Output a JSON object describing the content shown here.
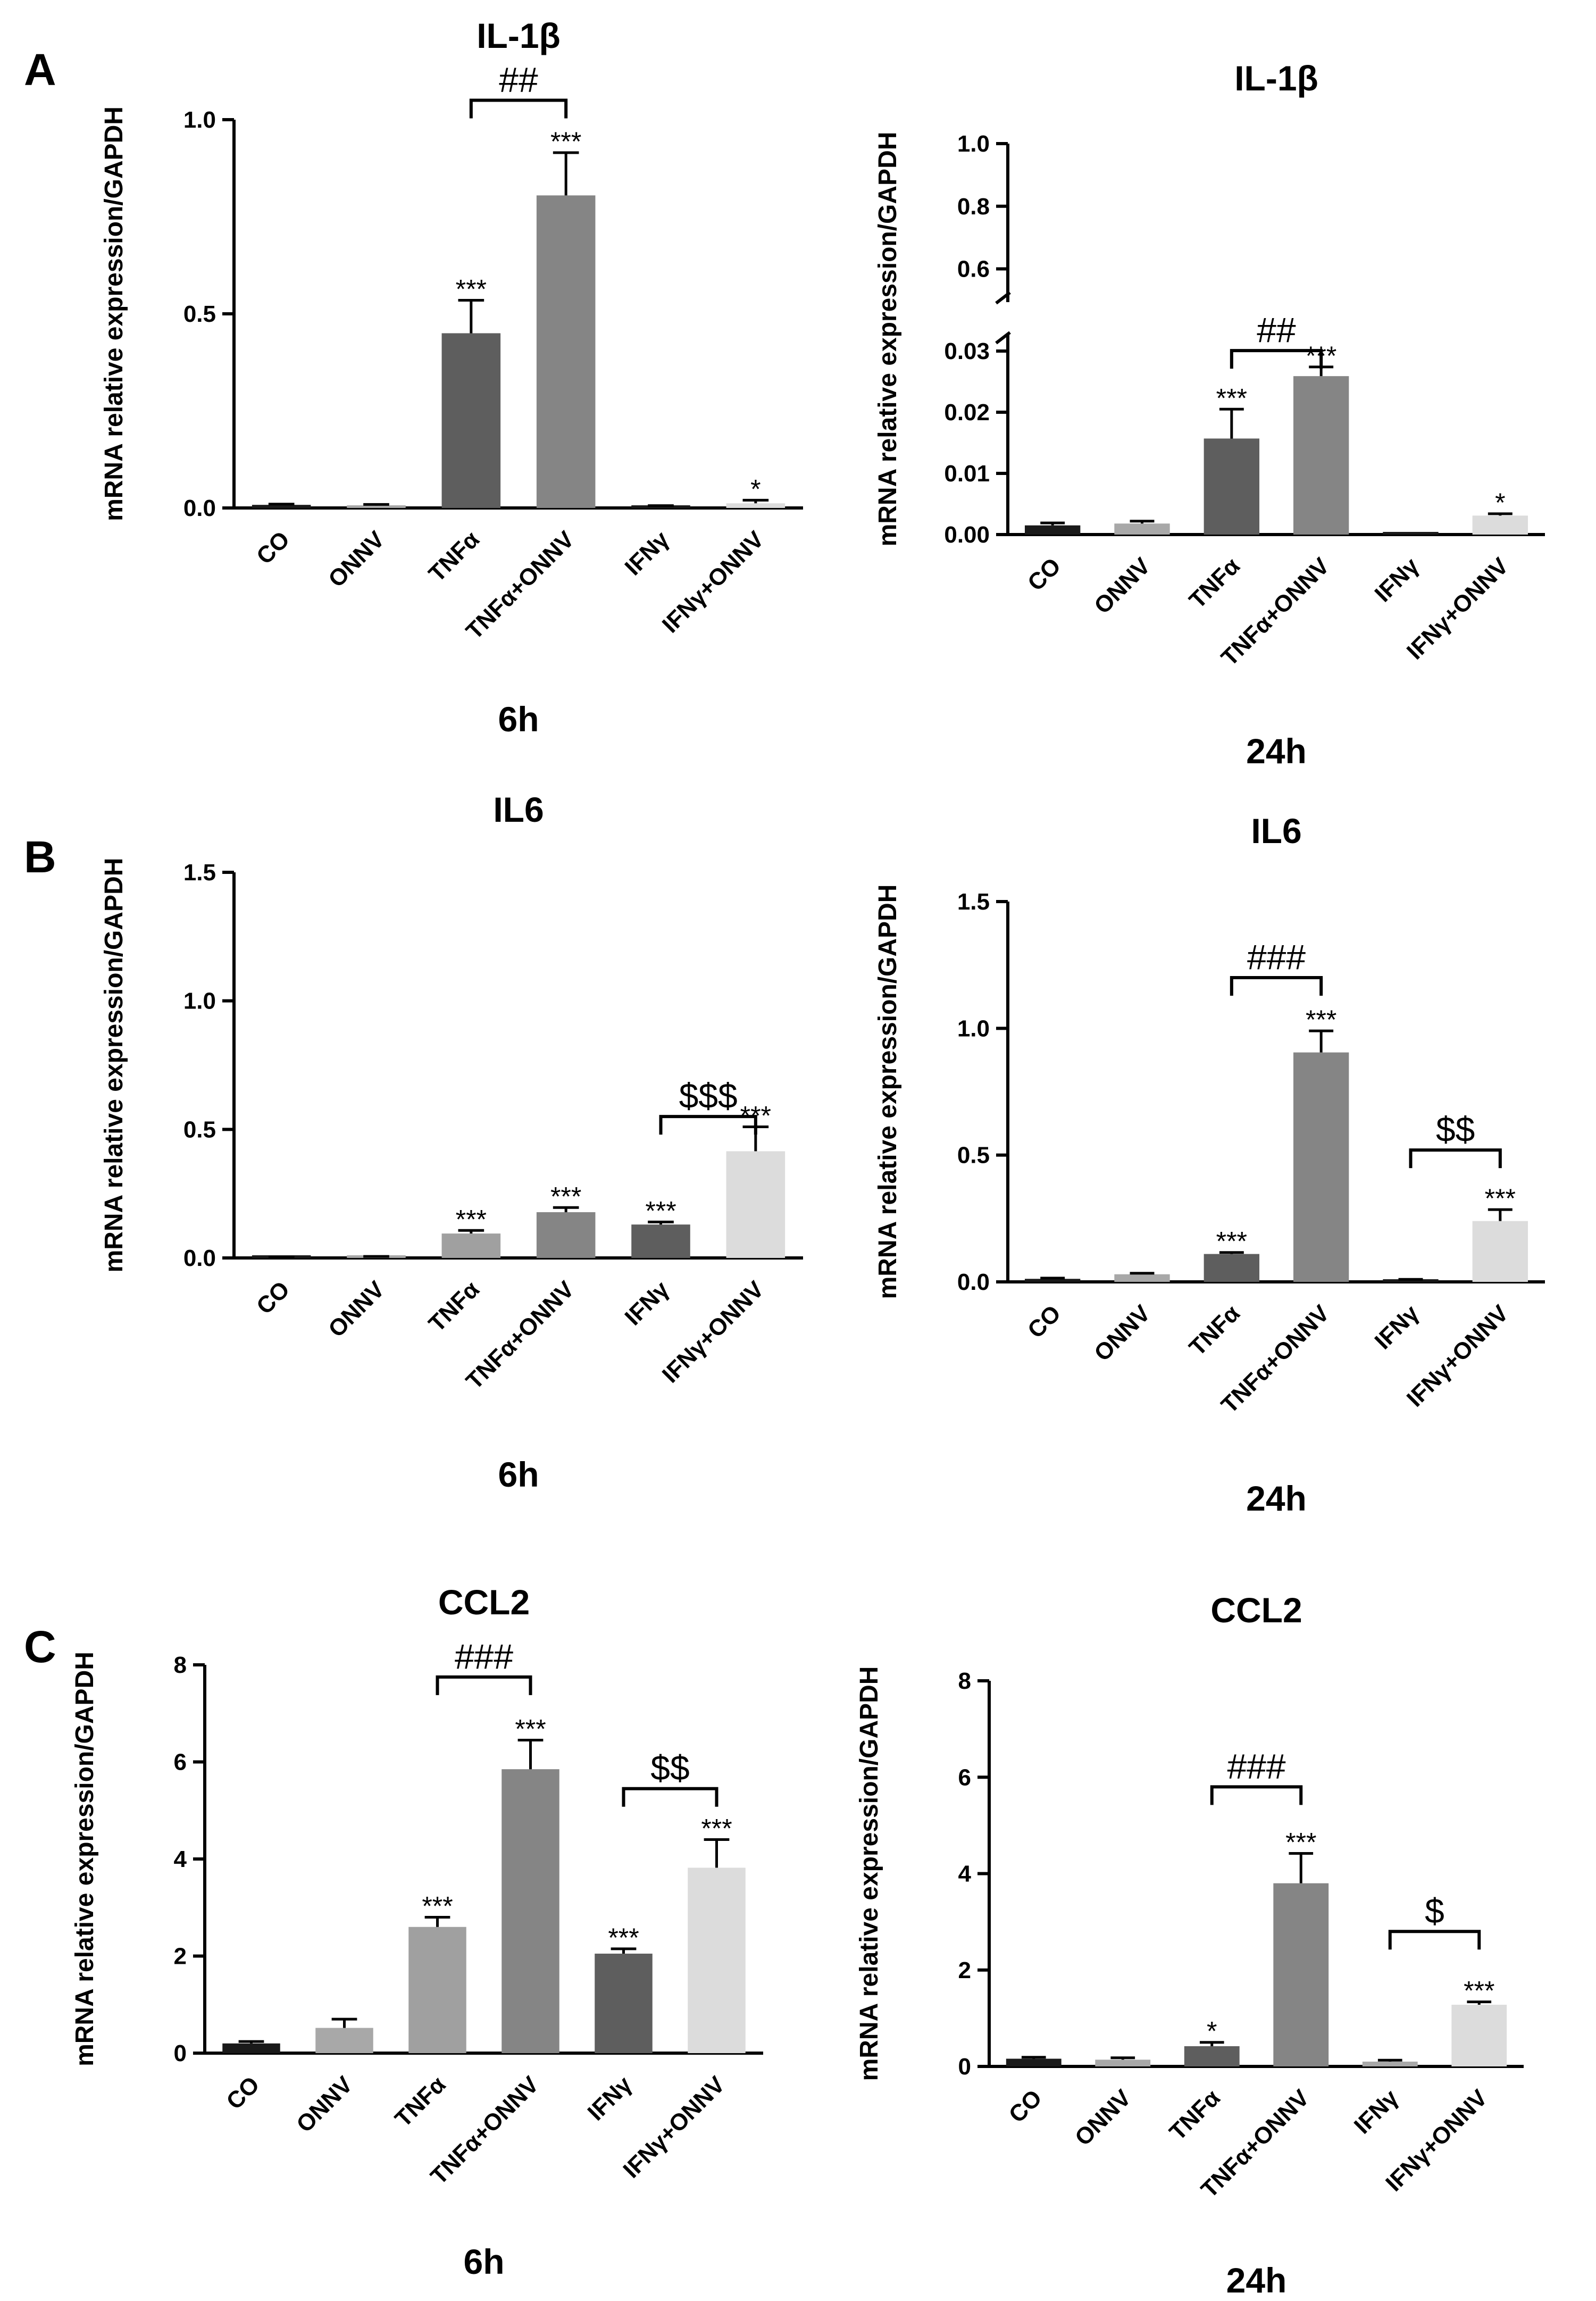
{
  "categories": [
    "CO",
    "ONNV",
    "TNFα",
    "TNFα+ONNV",
    "IFNγ",
    "IFNγ+ONNV"
  ],
  "colors": [
    "#1a1a1a",
    "#a8a8a8",
    "#5e5e5e",
    "#858585",
    "#e8e8e8",
    "#dcdcdc"
  ],
  "chart_data": [
    {
      "type": "bar",
      "id": "A6",
      "panel": "A",
      "title": "IL-1β",
      "timepoint": "6h",
      "ylabel": "mRNA relative expression/GAPDH",
      "ylim": [
        0,
        1.0
      ],
      "yticks": [
        0.0,
        0.5,
        1.0
      ],
      "ytick_labels": [
        "0.0",
        "0.5",
        "1.0"
      ],
      "colors": [
        "#1a1a1a",
        "#a8a8a8",
        "#5e5e5e",
        "#858585",
        "#1a1a1a",
        "#dcdcdc"
      ],
      "values": [
        0.008,
        0.006,
        0.45,
        0.805,
        0.004,
        0.012
      ],
      "errors": [
        0.002,
        0.003,
        0.085,
        0.11,
        0.002,
        0.008
      ],
      "stars": [
        "",
        "",
        "***",
        "***",
        "",
        "*"
      ],
      "brackets": [
        {
          "from": 2,
          "to": 3,
          "label": "##",
          "level": 1.05
        }
      ]
    },
    {
      "type": "bar",
      "id": "A24",
      "panel": "",
      "title": "IL-1β",
      "timepoint": "24h",
      "ylabel": "mRNA relative expression/GAPDH",
      "broken_axis": true,
      "lower_ylim": [
        0,
        0.03
      ],
      "lower_yticks": [
        0.0,
        0.01,
        0.02,
        0.03
      ],
      "lower_ytick_labels": [
        "0.00",
        "0.01",
        "0.02",
        "0.03"
      ],
      "upper_ylim": [
        0.55,
        1.0
      ],
      "upper_yticks": [
        0.6,
        0.8,
        1.0
      ],
      "upper_ytick_labels": [
        "0.6",
        "0.8",
        "1.0"
      ],
      "colors": [
        "#1a1a1a",
        "#a8a8a8",
        "#5e5e5e",
        "#858585",
        "#1a1a1a",
        "#dcdcdc"
      ],
      "values": [
        0.0015,
        0.0018,
        0.0157,
        0.0259,
        0.0001,
        0.0031
      ],
      "errors": [
        0.0004,
        0.0004,
        0.0048,
        0.0015,
        0.0,
        0.0003
      ],
      "stars": [
        "",
        "",
        "***",
        "***",
        "",
        "*"
      ],
      "brackets": [
        {
          "from": 2,
          "to": 3,
          "label": "##",
          "level": 0.0335
        }
      ]
    },
    {
      "type": "bar",
      "id": "B6",
      "panel": "B",
      "title": "IL6",
      "timepoint": "6h",
      "ylabel": "mRNA relative expression/GAPDH",
      "ylim": [
        0,
        1.5
      ],
      "yticks": [
        0.0,
        0.5,
        1.0,
        1.5
      ],
      "ytick_labels": [
        "0.0",
        "0.5",
        "1.0",
        "1.5"
      ],
      "colors": [
        "#1a1a1a",
        "#a8a8a8",
        "#a0a0a0",
        "#858585",
        "#5e5e5e",
        "#dcdcdc"
      ],
      "values": [
        0.002,
        0.003,
        0.095,
        0.178,
        0.13,
        0.415
      ],
      "errors": [
        0.001,
        0.003,
        0.012,
        0.018,
        0.01,
        0.095
      ],
      "stars": [
        "",
        "",
        "***",
        "***",
        "***",
        "***"
      ],
      "brackets": [
        {
          "from": 4,
          "to": 5,
          "label": "$$$",
          "level": 0.55
        }
      ]
    },
    {
      "type": "bar",
      "id": "B24",
      "panel": "",
      "title": "IL6",
      "timepoint": "24h",
      "ylabel": "mRNA relative expression/GAPDH",
      "ylim": [
        0,
        1.5
      ],
      "yticks": [
        0.0,
        0.5,
        1.0,
        1.5
      ],
      "ytick_labels": [
        "0.0",
        "0.5",
        "1.0",
        "1.5"
      ],
      "colors": [
        "#1a1a1a",
        "#a8a8a8",
        "#5e5e5e",
        "#858585",
        "#1a1a1a",
        "#dcdcdc"
      ],
      "values": [
        0.012,
        0.03,
        0.11,
        0.905,
        0.008,
        0.24
      ],
      "errors": [
        0.003,
        0.004,
        0.006,
        0.085,
        0.002,
        0.045
      ],
      "stars": [
        "",
        "",
        "***",
        "***",
        "",
        "***"
      ],
      "brackets": [
        {
          "from": 2,
          "to": 3,
          "label": "###",
          "level": 1.2
        },
        {
          "from": 4,
          "to": 5,
          "label": "$$",
          "level": 0.52
        }
      ]
    },
    {
      "type": "bar",
      "id": "C6",
      "panel": "C",
      "title": "CCL2",
      "timepoint": "6h",
      "ylabel": "mRNA relative expression/GAPDH",
      "ylim": [
        0,
        8
      ],
      "yticks": [
        0,
        2,
        4,
        6,
        8
      ],
      "ytick_labels": [
        "0",
        "2",
        "4",
        "6",
        "8"
      ],
      "colors": [
        "#1a1a1a",
        "#a8a8a8",
        "#a0a0a0",
        "#858585",
        "#5e5e5e",
        "#dcdcdc"
      ],
      "values": [
        0.2,
        0.52,
        2.6,
        5.85,
        2.05,
        3.82
      ],
      "errors": [
        0.04,
        0.18,
        0.2,
        0.6,
        0.1,
        0.58
      ],
      "stars": [
        "",
        "",
        "***",
        "***",
        "***",
        "***"
      ],
      "brackets": [
        {
          "from": 2,
          "to": 3,
          "label": "###",
          "level": 7.75
        },
        {
          "from": 4,
          "to": 5,
          "label": "$$",
          "level": 5.45
        }
      ]
    },
    {
      "type": "bar",
      "id": "C24",
      "panel": "",
      "title": "CCL2",
      "timepoint": "24h",
      "ylabel": "mRNA relative expression/GAPDH",
      "ylim": [
        0,
        8
      ],
      "yticks": [
        0,
        2,
        4,
        6,
        8
      ],
      "ytick_labels": [
        "0",
        "2",
        "4",
        "6",
        "8"
      ],
      "colors": [
        "#1a1a1a",
        "#a8a8a8",
        "#5e5e5e",
        "#858585",
        "#a8a8a8",
        "#dcdcdc"
      ],
      "values": [
        0.16,
        0.14,
        0.42,
        3.8,
        0.1,
        1.28
      ],
      "errors": [
        0.03,
        0.04,
        0.08,
        0.62,
        0.03,
        0.06
      ],
      "stars": [
        "",
        "",
        "*",
        "***",
        "",
        "***"
      ],
      "brackets": [
        {
          "from": 2,
          "to": 3,
          "label": "###",
          "level": 5.8
        },
        {
          "from": 4,
          "to": 5,
          "label": "$",
          "level": 2.8
        }
      ]
    }
  ]
}
